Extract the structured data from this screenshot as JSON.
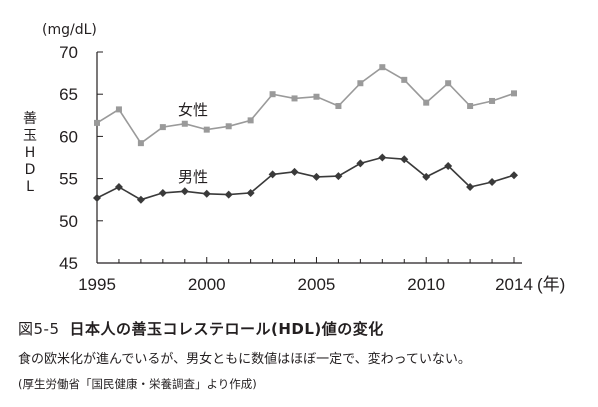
{
  "chart_data": {
    "type": "line",
    "unit_label": "(mg/dL)",
    "ylabel_chars": [
      "善",
      "玉",
      "H",
      "D",
      "L"
    ],
    "x_suffix": "(年)",
    "ylim": [
      45,
      70
    ],
    "yticks": [
      45,
      50,
      55,
      60,
      65,
      70
    ],
    "xlim": [
      1995,
      2014
    ],
    "xticks": [
      1995,
      2000,
      2005,
      2010,
      2014
    ],
    "grid": false,
    "x": [
      1995,
      1996,
      1997,
      1998,
      1999,
      2000,
      2001,
      2002,
      2003,
      2004,
      2005,
      2006,
      2007,
      2008,
      2009,
      2010,
      2011,
      2012,
      2013,
      2014
    ],
    "series": [
      {
        "name": "女性",
        "color": "#9a9a9a",
        "marker": "square",
        "values": [
          61.6,
          63.2,
          59.2,
          61.1,
          61.5,
          60.8,
          61.2,
          61.9,
          65.0,
          64.5,
          64.7,
          63.6,
          66.3,
          68.2,
          66.7,
          64.0,
          66.3,
          63.6,
          64.2,
          65.1
        ]
      },
      {
        "name": "男性",
        "color": "#3a3a3a",
        "marker": "diamond",
        "values": [
          52.7,
          54.0,
          52.5,
          53.3,
          53.5,
          53.2,
          53.1,
          53.3,
          55.5,
          55.8,
          55.2,
          55.3,
          56.8,
          57.5,
          57.3,
          55.2,
          56.5,
          54.0,
          54.6,
          55.4
        ]
      }
    ]
  },
  "caption": {
    "figure_number": "図5-5",
    "title": "日本人の善玉コレステロール(HDL)値の変化",
    "description": "食の欧米化が進んでいるが、男女ともに数値はほぼ一定で、変わっていない。",
    "source": "(厚生労働省「国民健康・栄養調査」より作成)"
  }
}
